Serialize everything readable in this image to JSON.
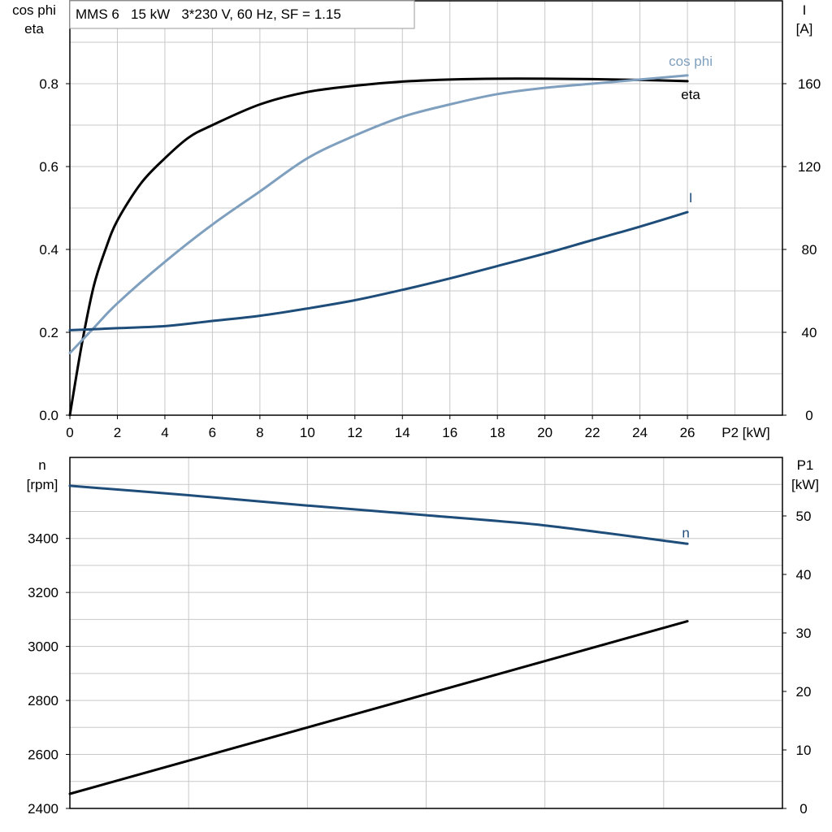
{
  "chart_data": [
    {
      "type": "line",
      "title": "MMS 6   15 kW   3*230 V, 60 Hz, SF = 1.15",
      "ylabel_left": [
        "cos phi",
        "eta"
      ],
      "ylabel_right": [
        "I",
        "[A]"
      ],
      "xlabel": "P2 [kW]",
      "xlim": [
        0,
        30
      ],
      "ylim_left": [
        0,
        1.0
      ],
      "ylim_right": [
        0,
        200
      ],
      "xticks": [
        "0",
        "2",
        "4",
        "6",
        "8",
        "10",
        "12",
        "14",
        "16",
        "18",
        "20",
        "22",
        "24",
        "26"
      ],
      "yticks_left": [
        "0.0",
        "0.2",
        "0.4",
        "0.6",
        "0.8"
      ],
      "yticks_right": [
        "0",
        "40",
        "80",
        "120",
        "160"
      ],
      "grid": true,
      "series": [
        {
          "name": "eta",
          "axis": "left",
          "color": "#000000",
          "x": [
            0,
            0.5,
            1,
            1.5,
            2,
            3,
            4,
            5,
            6,
            8,
            10,
            12,
            14,
            16,
            18,
            20,
            22,
            24,
            26
          ],
          "y": [
            0.0,
            0.17,
            0.31,
            0.4,
            0.47,
            0.56,
            0.62,
            0.67,
            0.7,
            0.75,
            0.78,
            0.795,
            0.805,
            0.81,
            0.812,
            0.812,
            0.811,
            0.809,
            0.806
          ]
        },
        {
          "name": "cos phi",
          "axis": "left",
          "color": "#7f9fbe",
          "x": [
            0,
            1,
            2,
            4,
            6,
            8,
            10,
            12,
            14,
            16,
            18,
            20,
            22,
            24,
            26
          ],
          "y": [
            0.15,
            0.21,
            0.27,
            0.37,
            0.46,
            0.54,
            0.62,
            0.675,
            0.72,
            0.75,
            0.775,
            0.79,
            0.8,
            0.81,
            0.82
          ]
        },
        {
          "name": "I",
          "axis": "right",
          "color": "#1e4d7a",
          "x": [
            0,
            2,
            4,
            6,
            8,
            10,
            12,
            14,
            16,
            18,
            20,
            22,
            24,
            26
          ],
          "y": [
            41,
            42,
            43,
            45.5,
            48,
            51.5,
            55.5,
            60.5,
            66,
            72,
            78,
            84.5,
            91,
            98
          ]
        }
      ]
    },
    {
      "type": "line",
      "ylabel_left": [
        "n",
        "[rpm]"
      ],
      "ylabel_right": [
        "P1",
        "[kW]"
      ],
      "xlim": [
        0,
        30
      ],
      "ylim_left": [
        2400,
        3700
      ],
      "ylim_right": [
        0,
        60
      ],
      "yticks_left": [
        "2400",
        "2600",
        "2800",
        "3000",
        "3200",
        "3400"
      ],
      "yticks_right": [
        "0",
        "10",
        "20",
        "30",
        "40",
        "50"
      ],
      "grid": true,
      "series": [
        {
          "name": "n",
          "axis": "left",
          "color": "#1e4d7a",
          "x": [
            0,
            5,
            10,
            15,
            20,
            26
          ],
          "y": [
            3595,
            3560,
            3522,
            3486,
            3448,
            3380
          ]
        },
        {
          "name": "",
          "axis": "right",
          "color": "#000000",
          "x": [
            0,
            26
          ],
          "y": [
            2.5,
            32
          ]
        }
      ]
    }
  ]
}
